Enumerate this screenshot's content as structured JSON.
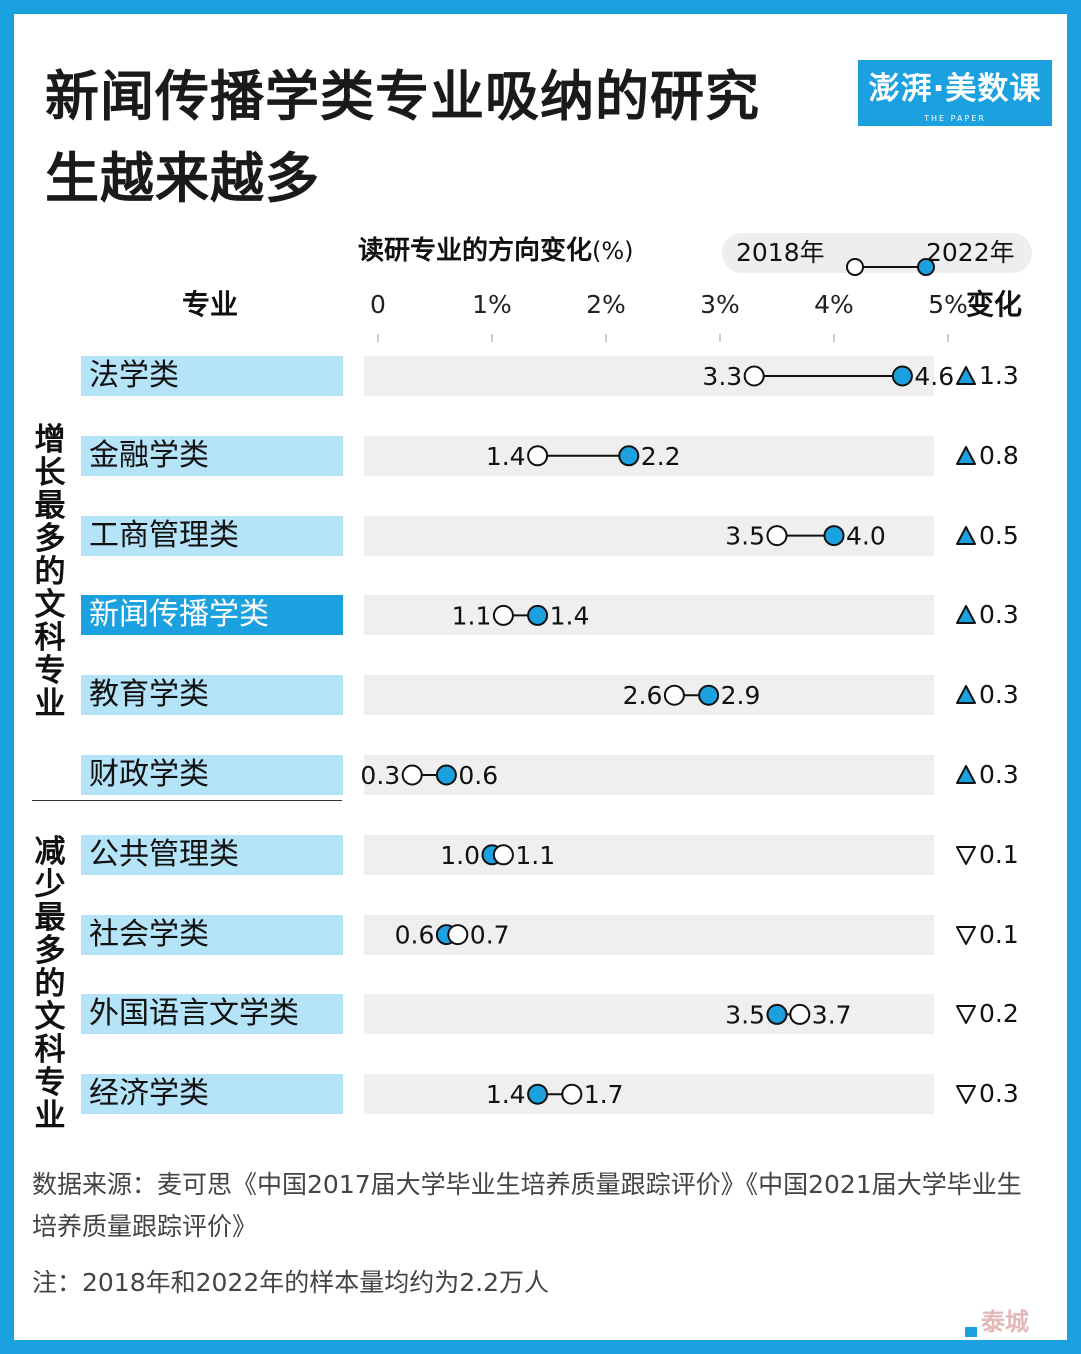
{
  "title": "新闻传播学类专业吸纳的研究生越来越多",
  "logo": {
    "text": "澎湃·美数课",
    "sub": "THE PAPER"
  },
  "chart_data": {
    "type": "dumbbell",
    "title": "读研专业的方向变化",
    "unit": "(%)",
    "legend": [
      "2018年",
      "2022年"
    ],
    "column_headers": {
      "category": "专业",
      "change": "变化"
    },
    "xlim": [
      0,
      5
    ],
    "ticks": [
      "0",
      "1%",
      "2%",
      "3%",
      "4%",
      "5%"
    ],
    "groups": [
      "增长最多的文科专业",
      "减少最多的文科专业"
    ],
    "rows": [
      {
        "name": "法学类",
        "y2018": 3.3,
        "y2022": 4.6,
        "l2018": "3.3",
        "l2022": "4.6",
        "change": "1.3",
        "dir": "up"
      },
      {
        "name": "金融学类",
        "y2018": 1.4,
        "y2022": 2.2,
        "l2018": "1.4",
        "l2022": "2.2",
        "change": "0.8",
        "dir": "up"
      },
      {
        "name": "工商管理类",
        "y2018": 3.5,
        "y2022": 4.0,
        "l2018": "3.5",
        "l2022": "4.0",
        "change": "0.5",
        "dir": "up"
      },
      {
        "name": "新闻传播学类",
        "y2018": 1.1,
        "y2022": 1.4,
        "l2018": "1.1",
        "l2022": "1.4",
        "change": "0.3",
        "dir": "up",
        "highlight": true
      },
      {
        "name": "教育学类",
        "y2018": 2.6,
        "y2022": 2.9,
        "l2018": "2.6",
        "l2022": "2.9",
        "change": "0.3",
        "dir": "up"
      },
      {
        "name": "财政学类",
        "y2018": 0.3,
        "y2022": 0.6,
        "l2018": "0.3",
        "l2022": "0.6",
        "change": "0.3",
        "dir": "up"
      },
      {
        "name": "公共管理类",
        "y2018": 1.1,
        "y2022": 1.0,
        "l2018": "1.1",
        "l2022": "1.0",
        "change": "0.1",
        "dir": "down"
      },
      {
        "name": "社会学类",
        "y2018": 0.7,
        "y2022": 0.6,
        "l2018": "0.7",
        "l2022": "0.6",
        "change": "0.1",
        "dir": "down"
      },
      {
        "name": "外国语言文学类",
        "y2018": 3.7,
        "y2022": 3.5,
        "l2018": "3.7",
        "l2022": "3.5",
        "change": "0.2",
        "dir": "down"
      },
      {
        "name": "经济学类",
        "y2018": 1.7,
        "y2022": 1.4,
        "l2018": "1.7",
        "l2022": "1.4",
        "change": "0.3",
        "dir": "down"
      }
    ]
  },
  "colors": {
    "accent": "#1ba0e0",
    "label_bg": "#b5e3f7",
    "track": "#efefef",
    "line": "#111111"
  },
  "source": "数据来源：麦可思《中国2017届大学毕业生培养质量跟踪评价》《中国2021届大学毕业生培养质量跟踪评价》",
  "note": "注：2018年和2022年的样本量均约为2.2万人",
  "watermark": "泰城"
}
